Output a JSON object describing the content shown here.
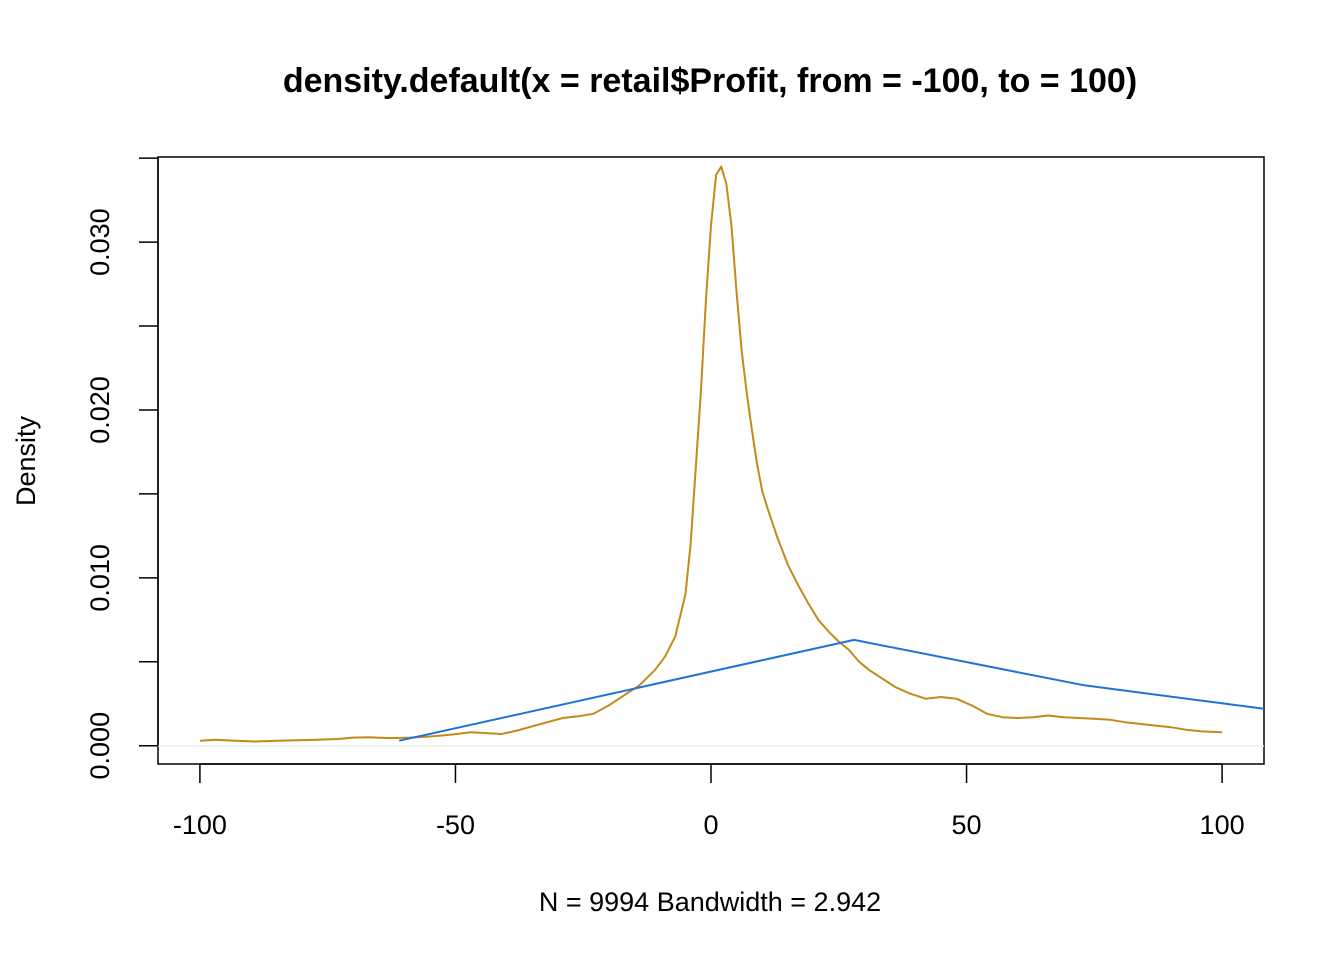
{
  "chart_data": {
    "type": "line",
    "title": "density.default(x = retail$Profit, from = -100, to = 100)",
    "xlabel": "N = 9994   Bandwidth = 2.942",
    "ylabel": "Density",
    "xlim": [
      -108.2,
      108.2
    ],
    "ylim": [
      -0.00109,
      0.03507
    ],
    "x_ticks": [
      -100,
      -50,
      0,
      50,
      100
    ],
    "x_tick_labels": [
      "-100",
      "-50",
      "0",
      "50",
      "100"
    ],
    "y_ticks": [
      0.0,
      0.005,
      0.01,
      0.015,
      0.02,
      0.025,
      0.03,
      0.035
    ],
    "y_tick_labels": [
      "0.000",
      "",
      "0.010",
      "",
      "0.020",
      "",
      "0.030",
      ""
    ],
    "grid": false,
    "zero_line": true,
    "series": [
      {
        "color": "#C48A1A",
        "x": [
          -100,
          -97,
          -93,
          -89,
          -85,
          -81,
          -77,
          -73,
          -70,
          -67,
          -63,
          -59,
          -55,
          -51,
          -47,
          -44,
          -41,
          -38,
          -35,
          -32,
          -29,
          -26,
          -23,
          -20,
          -17,
          -14,
          -11,
          -9,
          -7,
          -5,
          -4,
          -3,
          -2,
          -1,
          0,
          1,
          2,
          3,
          4,
          5,
          6,
          7,
          8,
          9,
          10,
          11,
          12,
          13,
          14,
          15,
          17,
          19,
          21,
          23,
          25,
          27,
          29,
          31,
          33,
          36,
          39,
          42,
          45,
          48,
          51,
          54,
          57,
          60,
          63,
          66,
          69,
          72,
          75,
          78,
          81,
          84,
          87,
          90,
          93,
          96,
          100
        ],
        "y": [
          0.0003,
          0.00035,
          0.0003,
          0.00025,
          0.0003,
          0.00032,
          0.00035,
          0.0004,
          0.00048,
          0.0005,
          0.00045,
          0.00048,
          0.00055,
          0.00065,
          0.0008,
          0.00075,
          0.0007,
          0.0009,
          0.00115,
          0.0014,
          0.00165,
          0.00175,
          0.0019,
          0.0024,
          0.003,
          0.0036,
          0.0045,
          0.0053,
          0.0065,
          0.009,
          0.012,
          0.0165,
          0.021,
          0.0265,
          0.031,
          0.034,
          0.0345,
          0.0335,
          0.031,
          0.027,
          0.0235,
          0.021,
          0.0188,
          0.0168,
          0.0152,
          0.0142,
          0.0133,
          0.0124,
          0.0116,
          0.0108,
          0.0096,
          0.0085,
          0.0075,
          0.0068,
          0.0062,
          0.0057,
          0.005,
          0.0045,
          0.0041,
          0.0035,
          0.0031,
          0.0028,
          0.0029,
          0.0028,
          0.0024,
          0.0019,
          0.0017,
          0.00165,
          0.0017,
          0.0018,
          0.0017,
          0.00165,
          0.0016,
          0.00155,
          0.0014,
          0.0013,
          0.0012,
          0.0011,
          0.00095,
          0.00085,
          0.0008
        ]
      },
      {
        "color": "#1E73D8",
        "x": [
          -61,
          28,
          73,
          108.2
        ],
        "y": [
          0.0003,
          0.0063,
          0.0036,
          0.0022
        ]
      }
    ]
  }
}
